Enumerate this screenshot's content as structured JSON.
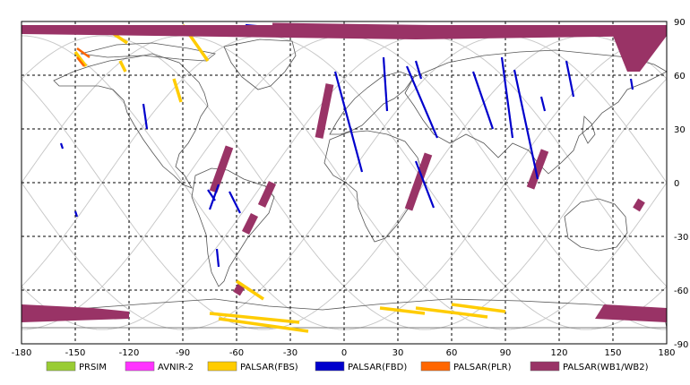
{
  "map": {
    "x_ticks": [
      "-180",
      "-150",
      "-120",
      "-90",
      "-60",
      "-30",
      "0",
      "30",
      "60",
      "90",
      "120",
      "150",
      "180"
    ],
    "y_ticks": [
      "90",
      "60",
      "30",
      "0",
      "-30",
      "-60",
      "-90"
    ],
    "x_range": [
      -180,
      180
    ],
    "y_range": [
      -90,
      90
    ],
    "grid": "dashed",
    "colors": {
      "background": "#ffffff",
      "coast": "#555555",
      "orbit": "#c8c8c8",
      "grid": "#000000"
    }
  },
  "legend": [
    {
      "label": "PRSIM",
      "color": "#99cc33"
    },
    {
      "label": "AVNIR-2",
      "color": "#ff33ff"
    },
    {
      "label": "PALSAR(FBS)",
      "color": "#ffcc00"
    },
    {
      "label": "PALSAR(FBD)",
      "color": "#0000cc"
    },
    {
      "label": "PALSAR(PLR)",
      "color": "#ff6600"
    },
    {
      "label": "PALSAR(WB1/WB2)",
      "color": "#993366"
    }
  ],
  "swaths": {
    "wb": [
      [
        [
          -40,
          87
        ],
        [
          170,
          84
        ]
      ],
      [
        [
          -8,
          55
        ],
        [
          -14,
          25
        ]
      ],
      [
        [
          -64,
          20
        ],
        [
          -73,
          -5
        ]
      ],
      [
        [
          -40,
          0
        ],
        [
          -46,
          -13
        ]
      ],
      [
        [
          -50,
          -18
        ],
        [
          -55,
          -28
        ]
      ],
      [
        [
          47,
          16
        ],
        [
          36,
          -15
        ]
      ],
      [
        [
          112,
          18
        ],
        [
          104,
          -3
        ]
      ],
      [
        [
          166,
          -10
        ],
        [
          163,
          -15
        ]
      ],
      [
        [
          -57,
          -57
        ],
        [
          -60,
          -62
        ]
      ]
    ],
    "fbd": [
      [
        [
          -55,
          88
        ],
        [
          -20,
          85
        ]
      ],
      [
        [
          -112,
          44
        ],
        [
          -110,
          30
        ]
      ],
      [
        [
          -76,
          -4
        ],
        [
          -72,
          -10
        ]
      ],
      [
        [
          -70,
          -1
        ],
        [
          -75,
          -15
        ]
      ],
      [
        [
          -64,
          -5
        ],
        [
          -58,
          -17
        ]
      ],
      [
        [
          -71,
          -37
        ],
        [
          -70,
          -47
        ]
      ],
      [
        [
          -158,
          22
        ],
        [
          -157,
          19
        ]
      ],
      [
        [
          -150,
          -16
        ],
        [
          -149,
          -19
        ]
      ],
      [
        [
          -5,
          62
        ],
        [
          10,
          6
        ]
      ],
      [
        [
          22,
          70
        ],
        [
          24,
          40
        ]
      ],
      [
        [
          40,
          68
        ],
        [
          43,
          58
        ]
      ],
      [
        [
          35,
          65
        ],
        [
          52,
          25
        ]
      ],
      [
        [
          40,
          12
        ],
        [
          50,
          -14
        ]
      ],
      [
        [
          72,
          62
        ],
        [
          83,
          30
        ]
      ],
      [
        [
          88,
          70
        ],
        [
          94,
          25
        ]
      ],
      [
        [
          95,
          63
        ],
        [
          108,
          2
        ]
      ],
      [
        [
          124,
          68
        ],
        [
          128,
          48
        ]
      ],
      [
        [
          160,
          58
        ],
        [
          161,
          52
        ]
      ],
      [
        [
          110,
          48
        ],
        [
          112,
          40
        ]
      ]
    ],
    "fbs": [
      [
        [
          -133,
          86
        ],
        [
          -121,
          78
        ]
      ],
      [
        [
          -90,
          88
        ],
        [
          -76,
          68
        ]
      ],
      [
        [
          -125,
          68
        ],
        [
          -122,
          62
        ]
      ],
      [
        [
          -95,
          58
        ],
        [
          -91,
          45
        ]
      ],
      [
        [
          -60,
          -55
        ],
        [
          -45,
          -65
        ]
      ],
      [
        [
          -75,
          -73
        ],
        [
          -25,
          -78
        ]
      ],
      [
        [
          -70,
          -76
        ],
        [
          -20,
          -83
        ]
      ],
      [
        [
          20,
          -70
        ],
        [
          45,
          -73
        ]
      ],
      [
        [
          40,
          -70
        ],
        [
          80,
          -75
        ]
      ],
      [
        [
          60,
          -68
        ],
        [
          90,
          -72
        ]
      ],
      [
        [
          -150,
          73
        ],
        [
          -144,
          65
        ]
      ]
    ],
    "plr": [
      [
        [
          -149,
          75
        ],
        [
          -142,
          70
        ]
      ],
      [
        [
          -149,
          70
        ],
        [
          -145,
          65
        ]
      ],
      [
        [
          70,
          86
        ],
        [
          152,
          83
        ]
      ]
    ]
  }
}
